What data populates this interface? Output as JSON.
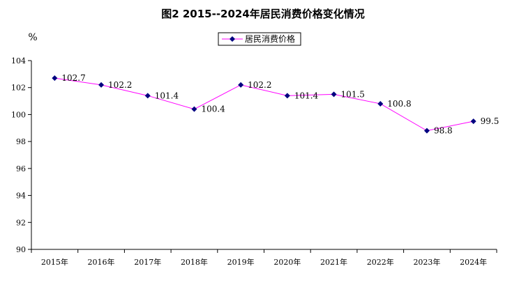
{
  "chart_data": {
    "type": "line",
    "title": "图2  2015--2024年居民消费价格变化情况",
    "ylabel": "%",
    "xlabel": "",
    "categories": [
      "2015年",
      "2016年",
      "2017年",
      "2018年",
      "2019年",
      "2020年",
      "2021年",
      "2022年",
      "2023年",
      "2024年"
    ],
    "series": [
      {
        "name": "居民消费价格",
        "values": [
          102.7,
          102.2,
          101.4,
          100.4,
          102.2,
          101.4,
          101.5,
          100.8,
          98.8,
          99.5
        ],
        "labels": [
          "102.7",
          "102.2",
          "101.4",
          "100.4",
          "102.2",
          "101.4",
          "101.5",
          "100.8",
          "98.8",
          "99.5"
        ]
      }
    ],
    "ylim": [
      90,
      104
    ],
    "yticks": [
      90,
      92,
      94,
      96,
      98,
      100,
      102,
      104
    ],
    "grid": false,
    "legend": "top-center",
    "line_color": "#ff00ff",
    "marker_color": "#000080"
  }
}
